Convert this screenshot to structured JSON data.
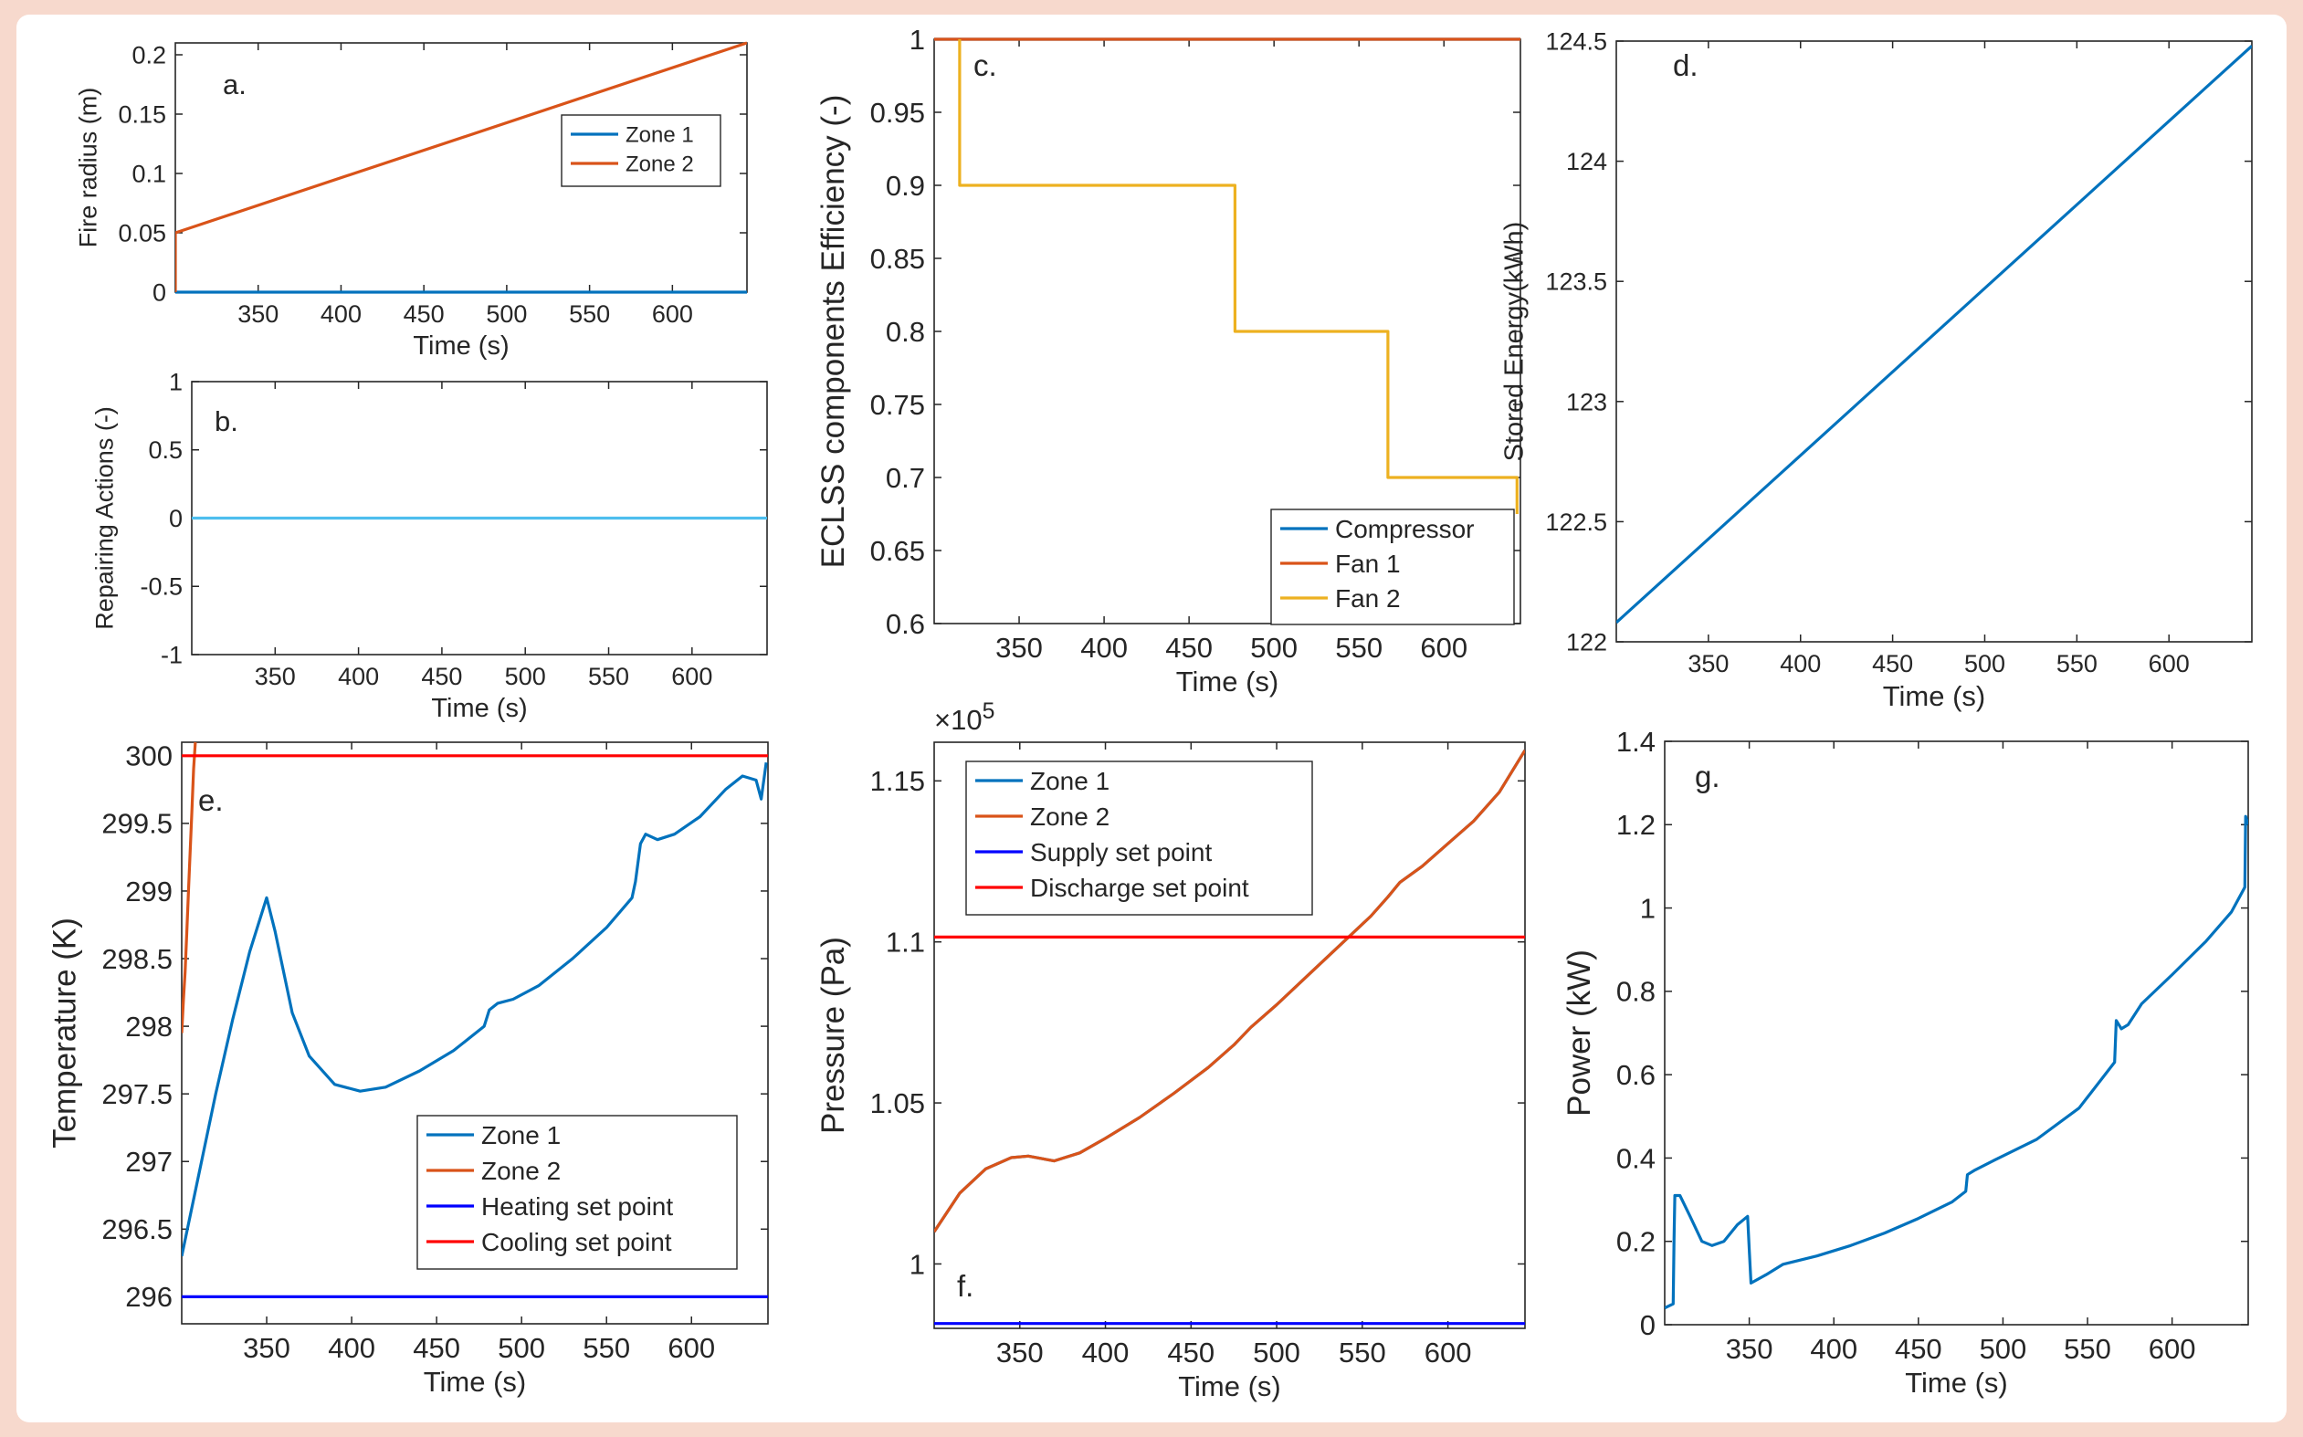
{
  "colors": {
    "border": "#f7d9cd",
    "blue": "#0072bd",
    "orange": "#d95319",
    "yellow": "#edb120",
    "lightblue": "#4dbeee",
    "pureblue": "#0000ff",
    "red": "#ff0000"
  },
  "chart_data": [
    {
      "id": "a",
      "type": "line",
      "panel_label": "a.",
      "xlabel": "Time (s)",
      "ylabel": "Fire radius (m)",
      "xlim": [
        300,
        645
      ],
      "ylim": [
        0,
        0.21
      ],
      "xticks": [
        350,
        400,
        450,
        500,
        550,
        600
      ],
      "xtick_labels": [
        "350",
        "400",
        "450",
        "500",
        "550",
        "600"
      ],
      "yticks": [
        0,
        0.05,
        0.1,
        0.15,
        0.2
      ],
      "ytick_labels": [
        "0",
        "0.05",
        "0.1",
        "0.15",
        "0.2"
      ],
      "legend": {
        "position": "center-right"
      },
      "series": [
        {
          "name": "Zone 1",
          "color": "#0072bd",
          "points": [
            [
              300,
              0
            ],
            [
              645,
              0
            ]
          ]
        },
        {
          "name": "Zone 2",
          "color": "#d95319",
          "points": [
            [
              300,
              0
            ],
            [
              300,
              0.05
            ],
            [
              645,
              0.21
            ]
          ]
        }
      ]
    },
    {
      "id": "b",
      "type": "line",
      "panel_label": "b.",
      "xlabel": "Time (s)",
      "ylabel": "Repairing Actions (-)",
      "xlim": [
        300,
        645
      ],
      "ylim": [
        -1,
        1
      ],
      "xticks": [
        350,
        400,
        450,
        500,
        550,
        600
      ],
      "xtick_labels": [
        "350",
        "400",
        "450",
        "500",
        "550",
        "600"
      ],
      "yticks": [
        -1,
        -0.5,
        0,
        0.5,
        1
      ],
      "ytick_labels": [
        "-1",
        "-0.5",
        "0",
        "0.5",
        "1"
      ],
      "series": [
        {
          "name": "Repairing actions",
          "color": "#4dbeee",
          "points": [
            [
              300,
              0
            ],
            [
              645,
              0
            ]
          ]
        }
      ]
    },
    {
      "id": "c",
      "type": "line",
      "panel_label": "c.",
      "xlabel": "Time (s)",
      "ylabel": "ECLSS components Efficiency (-)",
      "xlim": [
        300,
        645
      ],
      "ylim": [
        0.6,
        1
      ],
      "xticks": [
        350,
        400,
        450,
        500,
        550,
        600
      ],
      "xtick_labels": [
        "350",
        "400",
        "450",
        "500",
        "550",
        "600"
      ],
      "yticks": [
        0.6,
        0.65,
        0.7,
        0.75,
        0.8,
        0.85,
        0.9,
        0.95,
        1
      ],
      "ytick_labels": [
        "0.6",
        "0.65",
        "0.7",
        "0.75",
        "0.8",
        "0.85",
        "0.9",
        "0.95",
        "1"
      ],
      "legend": {
        "position": "bottom-right"
      },
      "series": [
        {
          "name": "Compressor",
          "color": "#0072bd",
          "points": [
            [
              300,
              1
            ],
            [
              645,
              1
            ]
          ]
        },
        {
          "name": "Fan 1",
          "color": "#d95319",
          "points": [
            [
              300,
              1
            ],
            [
              645,
              1
            ]
          ]
        },
        {
          "name": "Fan 2",
          "color": "#edb120",
          "points": [
            [
              315,
              1
            ],
            [
              315,
              0.9
            ],
            [
              477,
              0.9
            ],
            [
              477,
              0.8
            ],
            [
              567,
              0.8
            ],
            [
              567,
              0.7
            ],
            [
              643,
              0.7
            ],
            [
              643,
              0.675
            ]
          ]
        }
      ]
    },
    {
      "id": "d",
      "type": "line",
      "panel_label": "d.",
      "xlabel": "Time (s)",
      "ylabel": "Stored Energy(kWh)",
      "xlim": [
        300,
        645
      ],
      "ylim": [
        122,
        124.5
      ],
      "xticks": [
        350,
        400,
        450,
        500,
        550,
        600
      ],
      "xtick_labels": [
        "350",
        "400",
        "450",
        "500",
        "550",
        "600"
      ],
      "yticks": [
        122,
        122.5,
        123,
        123.5,
        124,
        124.5
      ],
      "ytick_labels": [
        "122",
        "122.5",
        "123",
        "123.5",
        "124",
        "124.5"
      ],
      "series": [
        {
          "name": "Stored energy",
          "color": "#0072bd",
          "points": [
            [
              300,
              122.08
            ],
            [
              645,
              124.48
            ]
          ]
        }
      ]
    },
    {
      "id": "e",
      "type": "line",
      "panel_label": "e.",
      "xlabel": "Time (s)",
      "ylabel": "Temperature (K)",
      "xlim": [
        300,
        645
      ],
      "ylim": [
        295.8,
        300.1
      ],
      "xticks": [
        350,
        400,
        450,
        500,
        550,
        600
      ],
      "xtick_labels": [
        "350",
        "400",
        "450",
        "500",
        "550",
        "600"
      ],
      "yticks": [
        296,
        296.5,
        297,
        297.5,
        298,
        298.5,
        299,
        299.5,
        300
      ],
      "ytick_labels": [
        "296",
        "296.5",
        "297",
        "297.5",
        "298",
        "298.5",
        "299",
        "299.5",
        "300"
      ],
      "legend": {
        "position": "bottom-center"
      },
      "series": [
        {
          "name": "Zone 1",
          "color": "#0072bd",
          "points": [
            [
              300,
              296.3
            ],
            [
              310,
              296.9
            ],
            [
              320,
              297.5
            ],
            [
              330,
              298.05
            ],
            [
              340,
              298.55
            ],
            [
              350,
              298.95
            ],
            [
              355,
              298.7
            ],
            [
              365,
              298.1
            ],
            [
              375,
              297.78
            ],
            [
              390,
              297.57
            ],
            [
              405,
              297.52
            ],
            [
              420,
              297.55
            ],
            [
              440,
              297.67
            ],
            [
              460,
              297.82
            ],
            [
              478,
              298.0
            ],
            [
              481,
              298.12
            ],
            [
              486,
              298.17
            ],
            [
              495,
              298.2
            ],
            [
              510,
              298.3
            ],
            [
              530,
              298.5
            ],
            [
              550,
              298.73
            ],
            [
              565,
              298.95
            ],
            [
              567,
              299.07
            ],
            [
              570,
              299.35
            ],
            [
              573,
              299.42
            ],
            [
              580,
              299.38
            ],
            [
              590,
              299.42
            ],
            [
              605,
              299.55
            ],
            [
              620,
              299.75
            ],
            [
              630,
              299.85
            ],
            [
              638,
              299.82
            ],
            [
              641,
              299.68
            ],
            [
              644,
              299.95
            ]
          ]
        },
        {
          "name": "Zone 2",
          "color": "#d95319",
          "points": [
            [
              300,
              297.95
            ],
            [
              301,
              298.2
            ],
            [
              302,
              298.4
            ],
            [
              303,
              298.7
            ],
            [
              304,
              299.0
            ],
            [
              305,
              299.3
            ],
            [
              306,
              299.6
            ],
            [
              307,
              299.9
            ],
            [
              308,
              300.1
            ]
          ]
        },
        {
          "name": "Heating set point",
          "color": "#0000ff",
          "points": [
            [
              300,
              296.0
            ],
            [
              645,
              296.0
            ]
          ]
        },
        {
          "name": "Cooling set point",
          "color": "#ff0000",
          "points": [
            [
              300,
              300.0
            ],
            [
              645,
              300.0
            ]
          ]
        }
      ]
    },
    {
      "id": "f",
      "type": "line",
      "panel_label": "f.",
      "xlabel": "Time (s)",
      "ylabel": "Pressure (Pa)",
      "exponent_label": "×10",
      "exponent_power": "5",
      "xlim": [
        300,
        645
      ],
      "ylim": [
        0.98,
        1.162
      ],
      "xticks": [
        350,
        400,
        450,
        500,
        550,
        600
      ],
      "xtick_labels": [
        "350",
        "400",
        "450",
        "500",
        "550",
        "600"
      ],
      "yticks": [
        1,
        1.05,
        1.1,
        1.15
      ],
      "ytick_labels": [
        "1",
        "1.05",
        "1.1",
        "1.15"
      ],
      "legend": {
        "position": "top-left"
      },
      "series": [
        {
          "name": "Zone 1",
          "color": "#0072bd",
          "points": [
            [
              300,
              1.01
            ],
            [
              315,
              1.022
            ],
            [
              330,
              1.0295
            ],
            [
              345,
              1.033
            ],
            [
              355,
              1.0335
            ],
            [
              370,
              1.032
            ],
            [
              385,
              1.0345
            ],
            [
              400,
              1.039
            ],
            [
              420,
              1.0455
            ],
            [
              440,
              1.053
            ],
            [
              460,
              1.061
            ],
            [
              475,
              1.068
            ],
            [
              485,
              1.0735
            ],
            [
              500,
              1.0805
            ],
            [
              520,
              1.0905
            ],
            [
              540,
              1.1005
            ],
            [
              555,
              1.108
            ],
            [
              565,
              1.114
            ],
            [
              572,
              1.1185
            ],
            [
              585,
              1.1235
            ],
            [
              600,
              1.1305
            ],
            [
              615,
              1.1375
            ],
            [
              630,
              1.1465
            ],
            [
              645,
              1.1595
            ]
          ]
        },
        {
          "name": "Zone 2",
          "color": "#d95319",
          "points": [
            [
              300,
              1.01
            ],
            [
              315,
              1.022
            ],
            [
              330,
              1.0295
            ],
            [
              345,
              1.033
            ],
            [
              355,
              1.0335
            ],
            [
              370,
              1.032
            ],
            [
              385,
              1.0345
            ],
            [
              400,
              1.039
            ],
            [
              420,
              1.0455
            ],
            [
              440,
              1.053
            ],
            [
              460,
              1.061
            ],
            [
              475,
              1.068
            ],
            [
              485,
              1.0735
            ],
            [
              500,
              1.0805
            ],
            [
              520,
              1.0905
            ],
            [
              540,
              1.1005
            ],
            [
              555,
              1.108
            ],
            [
              565,
              1.114
            ],
            [
              572,
              1.1185
            ],
            [
              585,
              1.1235
            ],
            [
              600,
              1.1305
            ],
            [
              615,
              1.1375
            ],
            [
              630,
              1.1465
            ],
            [
              645,
              1.1595
            ]
          ]
        },
        {
          "name": "Supply set point",
          "color": "#0000ff",
          "points": [
            [
              300,
              0.9815
            ],
            [
              645,
              0.9815
            ]
          ]
        },
        {
          "name": "Discharge set point",
          "color": "#ff0000",
          "points": [
            [
              300,
              1.1015
            ],
            [
              645,
              1.1015
            ]
          ]
        }
      ]
    },
    {
      "id": "g",
      "type": "line",
      "panel_label": "g.",
      "xlabel": "Time (s)",
      "ylabel": "Power (kW)",
      "xlim": [
        300,
        645
      ],
      "ylim": [
        0,
        1.4
      ],
      "xticks": [
        350,
        400,
        450,
        500,
        550,
        600
      ],
      "xtick_labels": [
        "350",
        "400",
        "450",
        "500",
        "550",
        "600"
      ],
      "yticks": [
        0,
        0.2,
        0.4,
        0.6,
        0.8,
        1,
        1.2,
        1.4
      ],
      "ytick_labels": [
        "0",
        "0.2",
        "0.4",
        "0.6",
        "0.8",
        "1",
        "1.2",
        "1.4"
      ],
      "series": [
        {
          "name": "Power",
          "color": "#0072bd",
          "points": [
            [
              300,
              0.04
            ],
            [
              305,
              0.05
            ],
            [
              305.5,
              0.2
            ],
            [
              306,
              0.31
            ],
            [
              309,
              0.31
            ],
            [
              315,
              0.26
            ],
            [
              322,
              0.2
            ],
            [
              328,
              0.19
            ],
            [
              335,
              0.2
            ],
            [
              343,
              0.24
            ],
            [
              349,
              0.26
            ],
            [
              350,
              0.18
            ],
            [
              351,
              0.1
            ],
            [
              360,
              0.12
            ],
            [
              370,
              0.145
            ],
            [
              390,
              0.165
            ],
            [
              410,
              0.19
            ],
            [
              430,
              0.22
            ],
            [
              450,
              0.255
            ],
            [
              470,
              0.295
            ],
            [
              478,
              0.32
            ],
            [
              479,
              0.36
            ],
            [
              483,
              0.37
            ],
            [
              495,
              0.395
            ],
            [
              520,
              0.445
            ],
            [
              545,
              0.52
            ],
            [
              566,
              0.63
            ],
            [
              567,
              0.73
            ],
            [
              570,
              0.71
            ],
            [
              574,
              0.72
            ],
            [
              582,
              0.77
            ],
            [
              600,
              0.84
            ],
            [
              620,
              0.92
            ],
            [
              635,
              0.99
            ],
            [
              643,
              1.05
            ],
            [
              643.5,
              1.22
            ],
            [
              645,
              1.2
            ]
          ]
        }
      ]
    }
  ]
}
